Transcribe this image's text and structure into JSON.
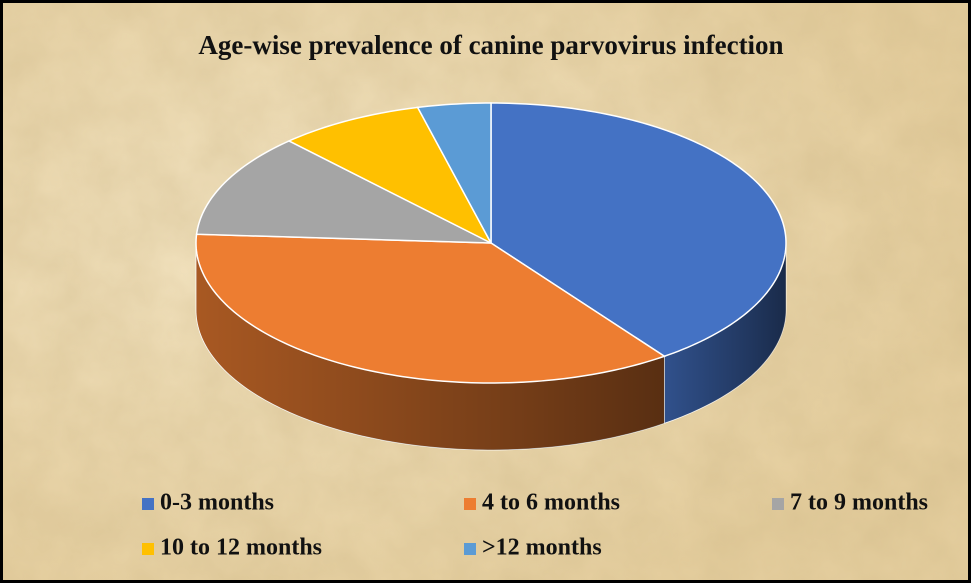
{
  "chart_data": {
    "type": "pie",
    "title": "Age-wise prevalence of canine parvovirus infection",
    "categories": [
      "0-3 months",
      "4 to 6 months",
      "7 to 9 months",
      "10 to 12 months",
      ">12 months"
    ],
    "values": [
      40,
      36,
      12,
      8,
      4
    ],
    "colors": [
      "#4472c4",
      "#ed7d31",
      "#a5a5a5",
      "#ffc000",
      "#5b9bd5"
    ],
    "legend": "bottom"
  }
}
